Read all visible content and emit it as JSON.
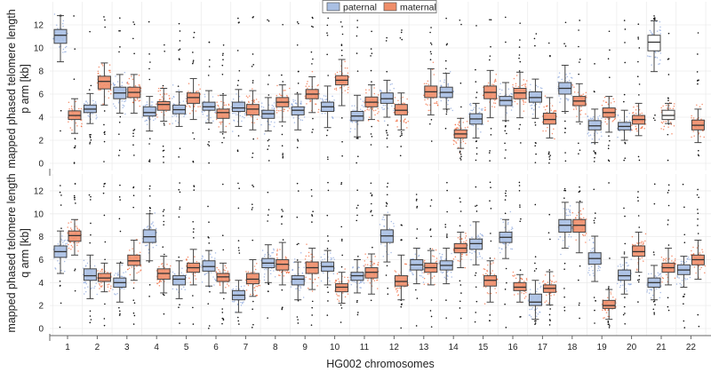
{
  "chart_data": {
    "type": "box",
    "xlabel": "HG002 chromosomes",
    "categories": [
      "1",
      "2",
      "3",
      "4",
      "5",
      "6",
      "7",
      "8",
      "9",
      "10",
      "11",
      "12",
      "13",
      "14",
      "15",
      "16",
      "17",
      "18",
      "19",
      "20",
      "21",
      "22"
    ],
    "legend": {
      "position": "top-center",
      "entries": [
        {
          "name": "paternal",
          "color": "#a9bfe3"
        },
        {
          "name": "maternal",
          "color": "#ef8e6a"
        }
      ]
    },
    "stats_order": [
      "whisker_low",
      "q1",
      "median",
      "q3",
      "whisker_high"
    ],
    "colors": {
      "paternal_box": "#a9bfe3",
      "maternal_box": "#ef8e6a",
      "paternal_points": "#8aa6dc",
      "maternal_points": "#f26a3c",
      "unassigned_box": "#ffffff",
      "grid": "#ececec"
    },
    "panels": [
      {
        "name": "p arm",
        "ylabel_line1": "mapped phased telomere length",
        "ylabel_line2": "p arm [kb]",
        "ylim": [
          0,
          13.5
        ],
        "yticks": [
          "0",
          "2",
          "4",
          "6",
          "8",
          "10",
          "12"
        ],
        "paternal": [
          [
            8.8,
            10.4,
            11.1,
            11.6,
            12.8
          ],
          [
            3.45,
            4.4,
            4.7,
            5.05,
            6.05
          ],
          [
            4.35,
            5.6,
            6.1,
            6.6,
            7.7
          ],
          [
            2.8,
            4.1,
            4.4,
            4.9,
            5.8
          ],
          [
            3.2,
            4.3,
            4.65,
            5.05,
            6.2
          ],
          [
            3.5,
            4.6,
            4.9,
            5.3,
            6.3
          ],
          [
            3.2,
            4.5,
            4.8,
            5.3,
            6.4
          ],
          [
            2.8,
            3.9,
            4.3,
            4.6,
            5.7
          ],
          [
            2.9,
            4.2,
            4.6,
            4.9,
            6.0
          ],
          [
            3.1,
            4.5,
            4.9,
            5.3,
            6.7
          ],
          [
            2.3,
            3.7,
            4.1,
            4.5,
            5.9
          ],
          [
            4.0,
            5.2,
            5.6,
            6.1,
            7.2
          ],
          null,
          [
            4.7,
            5.7,
            6.15,
            6.6,
            7.8
          ],
          [
            2.2,
            3.4,
            3.85,
            4.3,
            5.2
          ],
          [
            3.7,
            5.0,
            5.45,
            5.8,
            7.0
          ],
          [
            3.9,
            5.3,
            5.7,
            6.2,
            7.3
          ],
          [
            4.5,
            6.0,
            6.5,
            7.0,
            8.5
          ],
          [
            1.8,
            2.9,
            3.25,
            3.7,
            4.7
          ],
          [
            2.0,
            2.9,
            3.2,
            3.55,
            4.6
          ],
          [
            7.95,
            9.75,
            10.5,
            11.1,
            12.35
          ],
          null
        ],
        "maternal": [
          [
            2.6,
            3.8,
            4.15,
            4.55,
            5.6
          ],
          [
            5.05,
            6.45,
            7.1,
            7.55,
            8.7
          ],
          [
            4.35,
            5.7,
            6.15,
            6.6,
            7.7
          ],
          [
            3.65,
            4.6,
            5.1,
            5.35,
            6.5
          ],
          [
            3.8,
            5.2,
            5.7,
            6.1,
            7.35
          ],
          [
            2.7,
            3.9,
            4.4,
            4.7,
            5.9
          ],
          [
            2.9,
            4.2,
            4.7,
            5.1,
            6.3
          ],
          [
            3.6,
            4.9,
            5.3,
            5.7,
            6.8
          ],
          [
            4.4,
            5.6,
            6.0,
            6.4,
            7.5
          ],
          [
            5.0,
            6.8,
            7.2,
            7.6,
            9.0
          ],
          [
            3.8,
            4.9,
            5.3,
            5.75,
            6.8
          ],
          [
            2.9,
            4.2,
            4.6,
            5.1,
            6.1
          ],
          [
            4.2,
            5.7,
            6.2,
            6.7,
            8.2
          ],
          [
            1.3,
            2.2,
            2.55,
            2.9,
            3.9
          ],
          [
            3.95,
            5.6,
            6.15,
            6.7,
            8.05
          ],
          [
            3.95,
            5.6,
            6.1,
            6.5,
            7.9
          ],
          [
            2.2,
            3.4,
            3.8,
            4.35,
            5.7
          ],
          [
            3.6,
            5.0,
            5.4,
            5.8,
            6.9
          ],
          [
            2.7,
            4.0,
            4.4,
            4.8,
            5.8
          ],
          [
            2.4,
            3.4,
            3.8,
            4.15,
            5.2
          ],
          [
            3.45,
            3.8,
            4.15,
            4.6,
            5.2
          ],
          [
            1.8,
            2.9,
            3.3,
            3.75,
            4.7
          ]
        ],
        "unassigned_fill_chromosomes": [
          "21"
        ]
      },
      {
        "name": "q arm",
        "ylabel_line1": "mapped phased telomere length",
        "ylabel_line2": "q arm [kb]",
        "ylim": [
          0,
          13.5
        ],
        "yticks": [
          "0",
          "2",
          "4",
          "6",
          "8",
          "10",
          "12"
        ],
        "paternal": [
          [
            4.8,
            6.2,
            6.7,
            7.2,
            8.5
          ],
          [
            2.6,
            4.2,
            4.6,
            5.2,
            6.4
          ],
          [
            2.3,
            3.6,
            4.0,
            4.4,
            5.7
          ],
          [
            5.9,
            7.5,
            8.0,
            8.6,
            10.0
          ],
          [
            2.6,
            3.8,
            4.3,
            4.6,
            5.9
          ],
          [
            3.7,
            5.0,
            5.4,
            5.9,
            6.8
          ],
          [
            1.4,
            2.5,
            2.9,
            3.3,
            4.2
          ],
          [
            4.0,
            5.3,
            5.7,
            6.1,
            7.3
          ],
          [
            2.5,
            3.8,
            4.3,
            4.6,
            5.8
          ],
          [
            3.8,
            5.0,
            5.4,
            5.8,
            6.8
          ],
          [
            3.1,
            4.2,
            4.6,
            4.9,
            6.0
          ],
          [
            5.8,
            7.5,
            8.07,
            8.6,
            9.9
          ],
          [
            3.9,
            5.1,
            5.55,
            6.0,
            7.0
          ],
          [
            3.9,
            5.1,
            5.5,
            5.9,
            7.0
          ],
          [
            5.55,
            6.9,
            7.4,
            7.8,
            9.3
          ],
          [
            6.1,
            7.5,
            7.95,
            8.4,
            9.5
          ],
          [
            0.8,
            2.0,
            2.3,
            3.0,
            4.2
          ],
          [
            7.0,
            8.4,
            9.0,
            9.5,
            11.0
          ],
          [
            4.1,
            5.6,
            6.1,
            6.6,
            8.05
          ],
          [
            3.0,
            4.2,
            4.6,
            5.1,
            6.2
          ],
          [
            2.5,
            3.6,
            4.0,
            4.4,
            5.5
          ],
          [
            3.6,
            4.7,
            5.1,
            5.55,
            6.3
          ]
        ],
        "maternal": [
          [
            6.4,
            7.6,
            8.1,
            8.5,
            9.5
          ],
          [
            3.2,
            4.1,
            4.4,
            4.8,
            5.7
          ],
          [
            4.2,
            5.5,
            5.9,
            6.4,
            7.7
          ],
          [
            3.1,
            4.3,
            4.8,
            5.2,
            6.3
          ],
          [
            3.8,
            4.9,
            5.3,
            5.7,
            6.9
          ],
          [
            3.1,
            4.1,
            4.5,
            4.8,
            5.7
          ],
          [
            2.8,
            3.9,
            4.3,
            4.8,
            6.0
          ],
          [
            3.8,
            5.1,
            5.6,
            6.0,
            7.5
          ],
          [
            3.4,
            4.8,
            5.3,
            5.8,
            7.0
          ],
          [
            2.2,
            3.2,
            3.6,
            3.9,
            4.9
          ],
          [
            3.0,
            4.4,
            4.9,
            5.3,
            6.5
          ],
          [
            2.5,
            3.7,
            4.1,
            4.6,
            6.4
          ],
          [
            3.8,
            4.9,
            5.3,
            5.7,
            6.8
          ],
          [
            5.3,
            6.6,
            7.0,
            7.4,
            8.4
          ],
          [
            2.3,
            3.7,
            4.2,
            4.6,
            5.9
          ],
          [
            2.3,
            3.3,
            3.6,
            4.0,
            4.7
          ],
          [
            2.05,
            3.15,
            3.5,
            3.8,
            4.95
          ],
          [
            6.6,
            8.4,
            9.0,
            9.5,
            11.0
          ],
          [
            0.8,
            1.75,
            2.0,
            2.45,
            3.4
          ],
          [
            4.9,
            6.3,
            6.7,
            7.2,
            8.4
          ],
          [
            3.8,
            4.9,
            5.3,
            5.7,
            7.0
          ],
          [
            4.3,
            5.55,
            6.0,
            6.4,
            7.7
          ]
        ],
        "unassigned_fill_chromosomes": []
      }
    ]
  }
}
